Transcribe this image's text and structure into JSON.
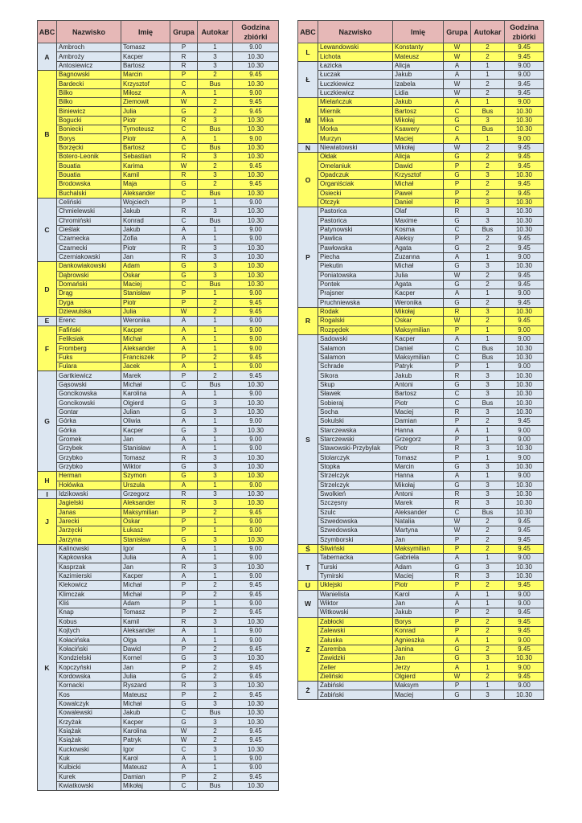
{
  "headers": [
    "ABC",
    "Nazwisko",
    "Imię",
    "Grupa",
    "Autokar",
    "Godzina zbiórki"
  ],
  "colors": {
    "header": "#e6b8b7",
    "blue": "#dce6f1",
    "yellow": "#ffff66"
  },
  "left": [
    {
      "letter": "A",
      "style": "blue",
      "rows": [
        [
          "Ambroch",
          "Tomasz",
          "P",
          "1",
          "9.00"
        ],
        [
          "Ambroży",
          "Kacper",
          "R",
          "3",
          "10.30"
        ],
        [
          "Antosiewicz",
          "Bartosz",
          "R",
          "3",
          "10.30"
        ]
      ]
    },
    {
      "letter": "B",
      "style": "yellow",
      "rows": [
        [
          "Bagnowski",
          "Marcin",
          "P",
          "2",
          "9.45"
        ],
        [
          "Bardecki",
          "Krzysztof",
          "C",
          "Bus",
          "10.30"
        ],
        [
          "Bilko",
          "Miłosz",
          "A",
          "1",
          "9.00"
        ],
        [
          "Bilko",
          "Ziemowit",
          "W",
          "2",
          "9.45"
        ],
        [
          "Biniewicz",
          "Julia",
          "G",
          "2",
          "9.45"
        ],
        [
          "Bogucki",
          "Piotr",
          "R",
          "3",
          "10.30"
        ],
        [
          "Boniecki",
          "Tymoteusz",
          "C",
          "Bus",
          "10.30"
        ],
        [
          "Borys",
          "Piotr",
          "A",
          "1",
          "9.00"
        ],
        [
          "Borzęcki",
          "Bartosz",
          "C",
          "Bus",
          "10.30"
        ],
        [
          "Botero-Leonik",
          "Sebastian",
          "R",
          "3",
          "10.30"
        ],
        [
          "Bouatia",
          "Karima",
          "W",
          "2",
          "9.45"
        ],
        [
          "Bouatia",
          "Kamil",
          "R",
          "3",
          "10.30"
        ],
        [
          "Brodowska",
          "Maja",
          "G",
          "2",
          "9.45"
        ],
        [
          "Buchalski",
          "Aleksander",
          "C",
          "Bus",
          "10.30"
        ]
      ]
    },
    {
      "letter": "C",
      "style": "blue",
      "rows": [
        [
          "Celiński",
          "Wojciech",
          "P",
          "1",
          "9.00"
        ],
        [
          "Chmielewski",
          "Jakub",
          "R",
          "3",
          "10.30"
        ],
        [
          "Chromiński",
          "Konrad",
          "C",
          "Bus",
          "10.30"
        ],
        [
          "Cieślak",
          "Jakub",
          "A",
          "1",
          "9.00"
        ],
        [
          "Czarnecka",
          "Zofia",
          "A",
          "1",
          "9.00"
        ],
        [
          "Czarnecki",
          "Piotr",
          "R",
          "3",
          "10.30"
        ],
        [
          "Czerniakowski",
          "Jan",
          "R",
          "3",
          "10.30"
        ]
      ]
    },
    {
      "letter": "D",
      "style": "yellow",
      "rows": [
        [
          "Dankowiakowski",
          "Adam",
          "G",
          "3",
          "10.30"
        ],
        [
          "Dąbrowski",
          "Oskar",
          "G",
          "3",
          "10.30"
        ],
        [
          "Domański",
          "Maciej",
          "C",
          "Bus",
          "10.30"
        ],
        [
          "Drąg",
          "Stanisław",
          "P",
          "1",
          "9.00"
        ],
        [
          "Dyga",
          "Piotr",
          "P",
          "2",
          "9.45"
        ],
        [
          "Dziewulska",
          "Julia",
          "W",
          "2",
          "9.45"
        ]
      ]
    },
    {
      "letter": "E",
      "style": "blue",
      "rows": [
        [
          "Erenc",
          "Weronika",
          "A",
          "1",
          "9.00"
        ]
      ]
    },
    {
      "letter": "F",
      "style": "yellow",
      "rows": [
        [
          "Fafiński",
          "Kacper",
          "A",
          "1",
          "9.00"
        ],
        [
          "Feliksiak",
          "Michał",
          "A",
          "1",
          "9.00"
        ],
        [
          "Fromberg",
          "Aleksander",
          "A",
          "1",
          "9.00"
        ],
        [
          "Fuks",
          "Franciszek",
          "P",
          "2",
          "9.45"
        ],
        [
          "Fulara",
          "Jacek",
          "A",
          "1",
          "9.00"
        ]
      ]
    },
    {
      "letter": "G",
      "style": "blue",
      "rows": [
        [
          "Gartkiewicz",
          "Marek",
          "P",
          "2",
          "9.45"
        ],
        [
          "Gąsowski",
          "Michał",
          "C",
          "Bus",
          "10.30"
        ],
        [
          "Goncikowska",
          "Karolina",
          "A",
          "1",
          "9.00"
        ],
        [
          "Goncikowski",
          "Olgierd",
          "G",
          "3",
          "10.30"
        ],
        [
          "Gontar",
          "Julian",
          "G",
          "3",
          "10.30"
        ],
        [
          "Górka",
          "Oliwia",
          "A",
          "1",
          "9.00"
        ],
        [
          "Górka",
          "Kacper",
          "G",
          "3",
          "10.30"
        ],
        [
          "Gromek",
          "Jan",
          "A",
          "1",
          "9.00"
        ],
        [
          "Grzybek",
          "Stanisław",
          "A",
          "1",
          "9.00"
        ],
        [
          "Grzybko",
          "Tomasz",
          "R",
          "3",
          "10.30"
        ],
        [
          "Grzybko",
          "Wiktor",
          "G",
          "3",
          "10.30"
        ]
      ]
    },
    {
      "letter": "H",
      "style": "yellow",
      "rows": [
        [
          "Herman",
          "Szymon",
          "G",
          "3",
          "10.30"
        ],
        [
          "Hołówka",
          "Urszula",
          "A",
          "1",
          "9.00"
        ]
      ]
    },
    {
      "letter": "I",
      "style": "blue",
      "rows": [
        [
          "Idzikowski",
          "Grzegorz",
          "R",
          "3",
          "10.30"
        ]
      ]
    },
    {
      "letter": "J",
      "style": "yellow",
      "rows": [
        [
          "Jagielski",
          "Aleksander",
          "R",
          "3",
          "10.30"
        ],
        [
          "Janas",
          "Maksymilian",
          "P",
          "2",
          "9.45"
        ],
        [
          "Jarecki",
          "Oskar",
          "P",
          "1",
          "9.00"
        ],
        [
          "Jarzęcki",
          "Łukasz",
          "P",
          "1",
          "9.00"
        ],
        [
          "Jarzyna",
          "Stanisław",
          "G",
          "3",
          "10.30"
        ]
      ]
    },
    {
      "letter": "K",
      "style": "blue",
      "rows": [
        [
          "Kalinowski",
          "Igor",
          "A",
          "1",
          "9.00"
        ],
        [
          "Kapkowska",
          "Julia",
          "A",
          "1",
          "9.00"
        ],
        [
          "Kasprzak",
          "Jan",
          "R",
          "3",
          "10.30"
        ],
        [
          "Kazimierski",
          "Kacper",
          "A",
          "1",
          "9.00"
        ],
        [
          "Klekowicz",
          "Michał",
          "P",
          "2",
          "9.45"
        ],
        [
          "Klimczak",
          "Michał",
          "P",
          "2",
          "9.45"
        ],
        [
          "Kliś",
          "Adam",
          "P",
          "1",
          "9.00"
        ],
        [
          "Knap",
          "Tomasz",
          "P",
          "2",
          "9.45"
        ],
        [
          "Kobus",
          "Kamil",
          "R",
          "3",
          "10.30"
        ],
        [
          "Kojtych",
          "Aleksander",
          "A",
          "1",
          "9.00"
        ],
        [
          "Kołacińska",
          "Olga",
          "A",
          "1",
          "9.00"
        ],
        [
          "Kołaciński",
          "Dawid",
          "P",
          "2",
          "9.45"
        ],
        [
          "Kondzielski",
          "Kornel",
          "G",
          "3",
          "10.30"
        ],
        [
          "Kopczyński",
          "Jan",
          "P",
          "2",
          "9.45"
        ],
        [
          "Kordowska",
          "Julia",
          "G",
          "2",
          "9.45"
        ],
        [
          "Kornacki",
          "Ryszard",
          "R",
          "3",
          "10.30"
        ],
        [
          "Kos",
          "Mateusz",
          "P",
          "2",
          "9.45"
        ],
        [
          "Kowalczyk",
          "Michał",
          "G",
          "3",
          "10.30"
        ],
        [
          "Kowalewski",
          "Jakub",
          "C",
          "Bus",
          "10.30"
        ],
        [
          "Krzyżak",
          "Kacper",
          "G",
          "3",
          "10.30"
        ],
        [
          "Książak",
          "Karolina",
          "W",
          "2",
          "9.45"
        ],
        [
          "Książak",
          "Patryk",
          "W",
          "2",
          "9.45"
        ],
        [
          "Kuckowski",
          "Igor",
          "C",
          "3",
          "10.30"
        ],
        [
          "Kuk",
          "Karol",
          "A",
          "1",
          "9.00"
        ],
        [
          "Kulbicki",
          "Mateusz",
          "A",
          "1",
          "9.00"
        ],
        [
          "Kurek",
          "Damian",
          "P",
          "2",
          "9.45"
        ],
        [
          "Kwiatkowski",
          "Mikołaj",
          "C",
          "Bus",
          "10.30"
        ]
      ]
    }
  ],
  "right": [
    {
      "letter": "L",
      "style": "yellow",
      "rows": [
        [
          "Lewandowski",
          "Konstanty",
          "W",
          "2",
          "9.45"
        ],
        [
          "Lichota",
          "Mateusz",
          "W",
          "2",
          "9.45"
        ]
      ]
    },
    {
      "letter": "Ł",
      "style": "blue",
      "rows": [
        [
          "Łazicka",
          "Alicja",
          "A",
          "1",
          "9.00"
        ],
        [
          "Łuczak",
          "Jakub",
          "A",
          "1",
          "9.00"
        ],
        [
          "Łuczkiewicz",
          "Izabela",
          "W",
          "2",
          "9.45"
        ],
        [
          "Łuczkiewicz",
          "Lidia",
          "W",
          "2",
          "9.45"
        ]
      ]
    },
    {
      "letter": "M",
      "style": "yellow",
      "rows": [
        [
          "Mielańczuk",
          "Jakub",
          "A",
          "1",
          "9.00"
        ],
        [
          "Miernik",
          "Bartosz",
          "C",
          "Bus",
          "10.30"
        ],
        [
          "Mika",
          "Mikołaj",
          "G",
          "3",
          "10.30"
        ],
        [
          "Morka",
          "Ksawery",
          "C",
          "Bus",
          "10.30"
        ],
        [
          "Murzyn",
          "Maciej",
          "A",
          "1",
          "9.00"
        ]
      ]
    },
    {
      "letter": "N",
      "style": "blue",
      "rows": [
        [
          "Niewiatowski",
          "Mikołaj",
          "W",
          "2",
          "9.45"
        ]
      ]
    },
    {
      "letter": "O",
      "style": "yellow",
      "rows": [
        [
          "Ołdak",
          "Alicja",
          "G",
          "2",
          "9.45"
        ],
        [
          "Omelaniuk",
          "Dawid",
          "P",
          "2",
          "9.45"
        ],
        [
          "Opadczuk",
          "Krzysztof",
          "G",
          "3",
          "10.30"
        ],
        [
          "Organiściak",
          "Michał",
          "P",
          "2",
          "9.45"
        ],
        [
          "Osiecki",
          "Paweł",
          "P",
          "2",
          "9.45"
        ],
        [
          "Otczyk",
          "Daniel",
          "R",
          "3",
          "10.30"
        ]
      ]
    },
    {
      "letter": "P",
      "style": "blue",
      "rows": [
        [
          "Pastorica",
          "Olaf",
          "R",
          "3",
          "10.30"
        ],
        [
          "Pastorica",
          "Maxime",
          "G",
          "3",
          "10.30"
        ],
        [
          "Patynowski",
          "Kosma",
          "C",
          "Bus",
          "10.30"
        ],
        [
          "Pawlica",
          "Aleksy",
          "P",
          "2",
          "9.45"
        ],
        [
          "Pawłowska",
          "Agata",
          "G",
          "2",
          "9.45"
        ],
        [
          "Piecha",
          "Zuzanna",
          "A",
          "1",
          "9.00"
        ],
        [
          "Piekutin",
          "Michał",
          "G",
          "3",
          "10.30"
        ],
        [
          "Poniatowska",
          "Julia",
          "W",
          "2",
          "9.45"
        ],
        [
          "Pontek",
          "Agata",
          "G",
          "2",
          "9.45"
        ],
        [
          "Prajsner",
          "Kacper",
          "A",
          "1",
          "9.00"
        ],
        [
          "Pruchniewska",
          "Weronika",
          "G",
          "2",
          "9.45"
        ]
      ]
    },
    {
      "letter": "R",
      "style": "yellow",
      "rows": [
        [
          "Rodak",
          "Mikołaj",
          "R",
          "3",
          "10.30"
        ],
        [
          "Rogalski",
          "Oskar",
          "W",
          "2",
          "9.45"
        ],
        [
          "Rozpędek",
          "Maksymilian",
          "P",
          "1",
          "9.00"
        ]
      ]
    },
    {
      "letter": "S",
      "style": "blue",
      "rows": [
        [
          "Sadowski",
          "Kacper",
          "A",
          "1",
          "9.00"
        ],
        [
          "Salamon",
          "Daniel",
          "C",
          "Bus",
          "10.30"
        ],
        [
          "Salamon",
          "Maksymilian",
          "C",
          "Bus",
          "10.30"
        ],
        [
          "Schrade",
          "Patryk",
          "P",
          "1",
          "9.00"
        ],
        [
          "Sikora",
          "Jakub",
          "R",
          "3",
          "10.30"
        ],
        [
          "Skup",
          "Antoni",
          "G",
          "3",
          "10.30"
        ],
        [
          "Sławek",
          "Bartosz",
          "C",
          "3",
          "10.30"
        ],
        [
          "Sobieraj",
          "Piotr",
          "C",
          "Bus",
          "10.30"
        ],
        [
          "Socha",
          "Maciej",
          "R",
          "3",
          "10.30"
        ],
        [
          "Sokulski",
          "Damian",
          "P",
          "2",
          "9.45"
        ],
        [
          "Starczewska",
          "Hanna",
          "A",
          "1",
          "9.00"
        ],
        [
          "Starczewski",
          "Grzegorz",
          "P",
          "1",
          "9.00"
        ],
        [
          "Stawowski-Przybylak",
          "Piotr",
          "R",
          "3",
          "10.30"
        ],
        [
          "Stolarczyk",
          "Tomasz",
          "P",
          "1",
          "9.00"
        ],
        [
          "Stopka",
          "Marcin",
          "G",
          "3",
          "10.30"
        ],
        [
          "Strzelczyk",
          "Hanna",
          "A",
          "1",
          "9.00"
        ],
        [
          "Strzelczyk",
          "Mikołaj",
          "G",
          "3",
          "10.30"
        ],
        [
          "Swolkień",
          "Antoni",
          "R",
          "3",
          "10.30"
        ],
        [
          "Szczęsny",
          "Marek",
          "R",
          "3",
          "10.30"
        ],
        [
          "Szulc",
          "Aleksander",
          "C",
          "Bus",
          "10.30"
        ],
        [
          "Szwedowska",
          "Natalia",
          "W",
          "2",
          "9.45"
        ],
        [
          "Szwedowska",
          "Martyna",
          "W",
          "2",
          "9.45"
        ],
        [
          "Szymborski",
          "Jan",
          "P",
          "2",
          "9.45"
        ]
      ]
    },
    {
      "letter": "Ś",
      "style": "yellow",
      "rows": [
        [
          "Śliwiński",
          "Maksymilian",
          "P",
          "2",
          "9.45"
        ]
      ]
    },
    {
      "letter": "T",
      "style": "blue",
      "rows": [
        [
          "Tabernacka",
          "Gabriela",
          "A",
          "1",
          "9.00"
        ],
        [
          "Turski",
          "Adam",
          "G",
          "3",
          "10.30"
        ],
        [
          "Tymirski",
          "Maciej",
          "R",
          "3",
          "10.30"
        ]
      ]
    },
    {
      "letter": "U",
      "style": "yellow",
      "rows": [
        [
          "Uklejski",
          "Piotr",
          "P",
          "2",
          "9.45"
        ]
      ]
    },
    {
      "letter": "W",
      "style": "blue",
      "rows": [
        [
          "Wanielista",
          "Karol",
          "A",
          "1",
          "9.00"
        ],
        [
          "Wiktor",
          "Jan",
          "A",
          "1",
          "9.00"
        ],
        [
          "Witkowski",
          "Jakub",
          "P",
          "2",
          "9.45"
        ]
      ]
    },
    {
      "letter": "Z",
      "style": "yellow",
      "rows": [
        [
          "Zabłocki",
          "Borys",
          "P",
          "2",
          "9.45"
        ],
        [
          "Zalewski",
          "Konrad",
          "P",
          "2",
          "9.45"
        ],
        [
          "Załuska",
          "Agnieszka",
          "A",
          "1",
          "9.00"
        ],
        [
          "Zaremba",
          "Janina",
          "G",
          "2",
          "9.45"
        ],
        [
          "Zawidzki",
          "Jan",
          "G",
          "3",
          "10.30"
        ],
        [
          "Zeller",
          "Jerzy",
          "A",
          "1",
          "9.00"
        ],
        [
          "Zieliński",
          "Olgierd",
          "W",
          "2",
          "9.45"
        ]
      ]
    },
    {
      "letter": "Ż",
      "style": "blue",
      "rows": [
        [
          "Żabiński",
          "Maksym",
          "P",
          "1",
          "9.00"
        ],
        [
          "Żabiński",
          "Maciej",
          "G",
          "3",
          "10.30"
        ]
      ]
    }
  ]
}
